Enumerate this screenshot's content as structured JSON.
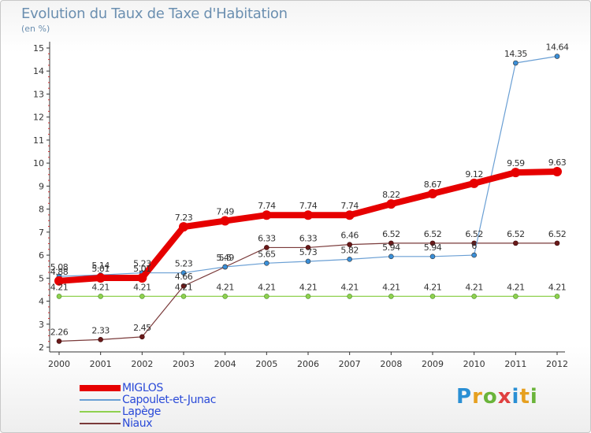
{
  "header": {
    "title": "Evolution du Taux de Taxe d'Habitation",
    "unit": "(en %)"
  },
  "logo": {
    "text": "Proxiti"
  },
  "colors": {
    "MIGLOS": "#e60000",
    "Capoulet-et-Junac": "#6a9fd4",
    "Lapège": "#8fd14f",
    "Niaux": "#7a3a3a"
  },
  "chart_data": {
    "type": "line",
    "title": "Evolution du Taux de Taxe d'Habitation",
    "ylabel": "(en %)",
    "xlabel": "",
    "x": [
      "2000",
      "2001",
      "2002",
      "2003",
      "2004",
      "2005",
      "2006",
      "2007",
      "2008",
      "2009",
      "2010",
      "2011",
      "2012"
    ],
    "ylim": [
      2,
      15
    ],
    "yticks": [
      2,
      3,
      4,
      5,
      6,
      7,
      8,
      9,
      10,
      11,
      12,
      13,
      14,
      15
    ],
    "grid": false,
    "legend_position": "bottom-left",
    "series": [
      {
        "name": "MIGLOS",
        "values": [
          4.88,
          5.01,
          5.01,
          7.23,
          7.49,
          7.74,
          7.74,
          7.74,
          8.22,
          8.67,
          9.12,
          9.59,
          9.63
        ],
        "labels": [
          "4.88",
          "5.01",
          "5.01",
          "7.23",
          "7.49",
          "7.74",
          "7.74",
          "7.74",
          "8.22",
          "8.67",
          "9.12",
          "9.59",
          "9.63"
        ]
      },
      {
        "name": "Capoulet-et-Junac",
        "values": [
          5.08,
          5.14,
          5.23,
          5.23,
          5.49,
          5.65,
          5.73,
          5.82,
          5.94,
          5.94,
          6,
          14.35,
          14.64
        ],
        "labels": [
          "5.08",
          "5.14",
          "5.23",
          "5.23",
          "5.49",
          "5.65",
          "5.73",
          "5.82",
          "5.94",
          "5.94",
          "6",
          "14.35",
          "14.64"
        ]
      },
      {
        "name": "Lapège",
        "values": [
          4.21,
          4.21,
          4.21,
          4.21,
          4.21,
          4.21,
          4.21,
          4.21,
          4.21,
          4.21,
          4.21,
          4.21,
          4.21
        ],
        "labels": [
          "4.21",
          "4.21",
          "4.21",
          "4.21",
          "4.21",
          "4.21",
          "4.21",
          "4.21",
          "4.21",
          "4.21",
          "4.21",
          "4.21",
          "4.21"
        ]
      },
      {
        "name": "Niaux",
        "values": [
          2.26,
          2.33,
          2.45,
          4.66,
          5.49,
          6.33,
          6.33,
          6.46,
          6.52,
          6.52,
          6.52,
          6.52,
          6.52
        ],
        "labels": [
          "2.26",
          "2.33",
          "2.45",
          "4.66",
          "5.5",
          "6.33",
          "6.33",
          "6.46",
          "6.52",
          "6.52",
          "6.52",
          "6.52",
          "6.52"
        ]
      }
    ]
  }
}
